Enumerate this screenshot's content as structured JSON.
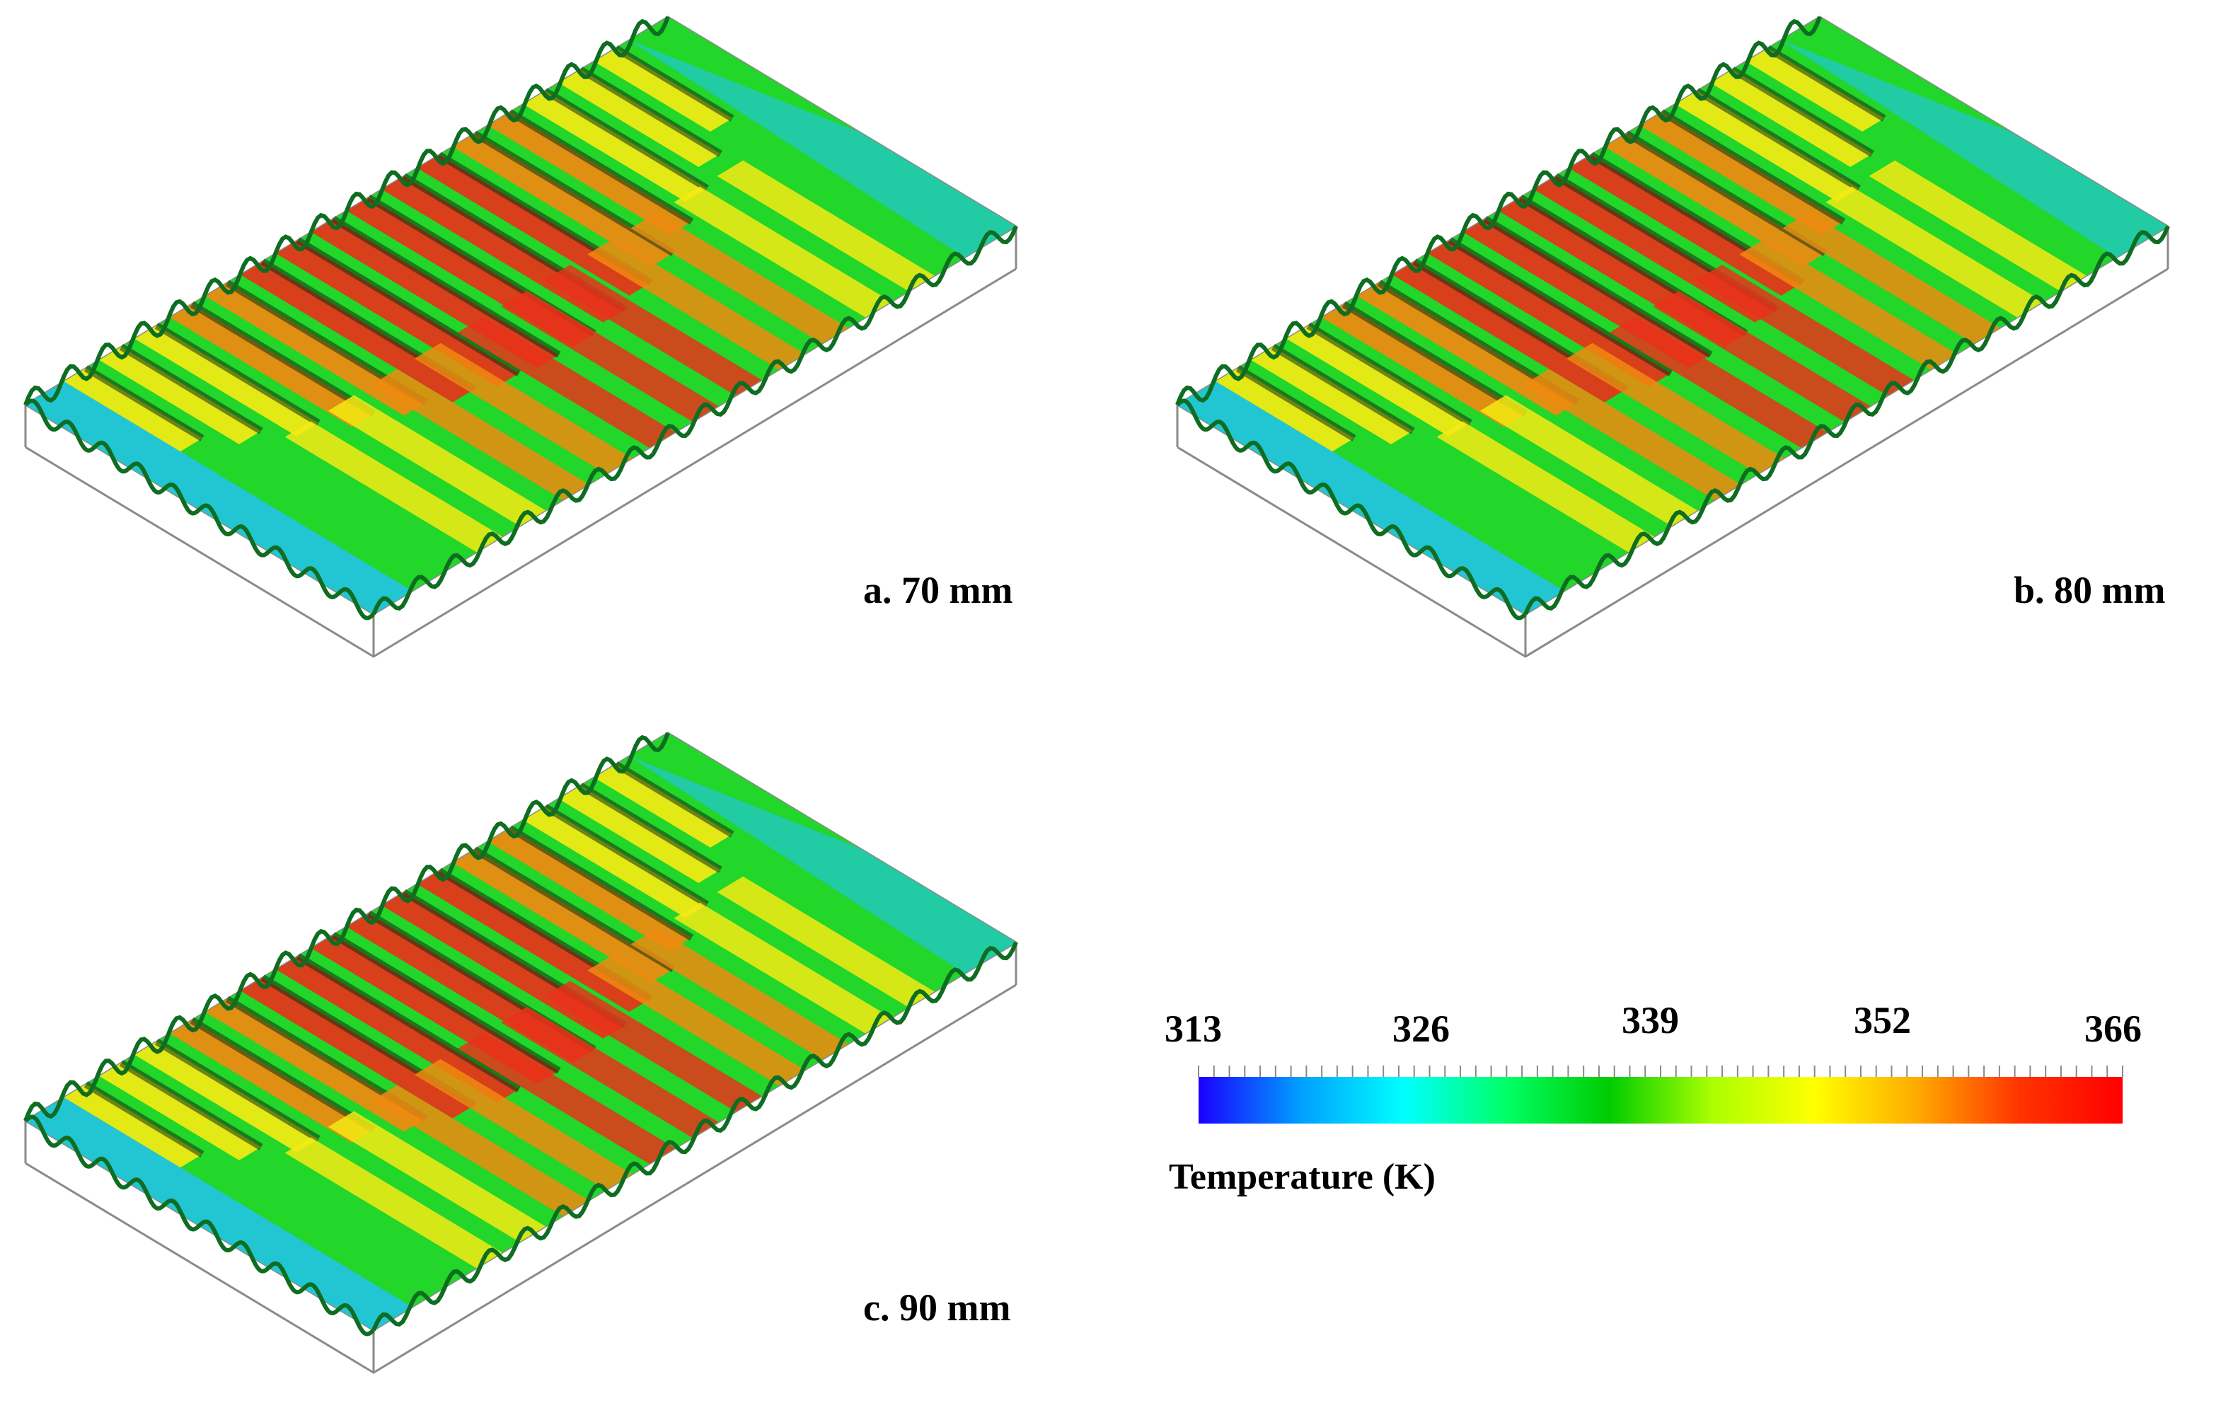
{
  "panels": [
    {
      "id": "a",
      "label": "a. 70 mm"
    },
    {
      "id": "b",
      "label": "b. 80 mm"
    },
    {
      "id": "c",
      "label": "c. 90 mm"
    }
  ],
  "colorbar": {
    "title": "Temperature (K)",
    "ticks": [
      "313",
      "326",
      "339",
      "352",
      "366"
    ],
    "min": 313,
    "max": 366,
    "colors": [
      "#1a00ff",
      "#00a0ff",
      "#00ffff",
      "#00ff66",
      "#00cc00",
      "#aaff00",
      "#ffff00",
      "#ffaa00",
      "#ff3300",
      "#ff0000"
    ]
  },
  "palette": {
    "cool": "#22c4e6",
    "green": "#22d62a",
    "yellow": "#f4ea14",
    "orange": "#f08a10",
    "red": "#e8321a",
    "dark": "#123010"
  }
}
